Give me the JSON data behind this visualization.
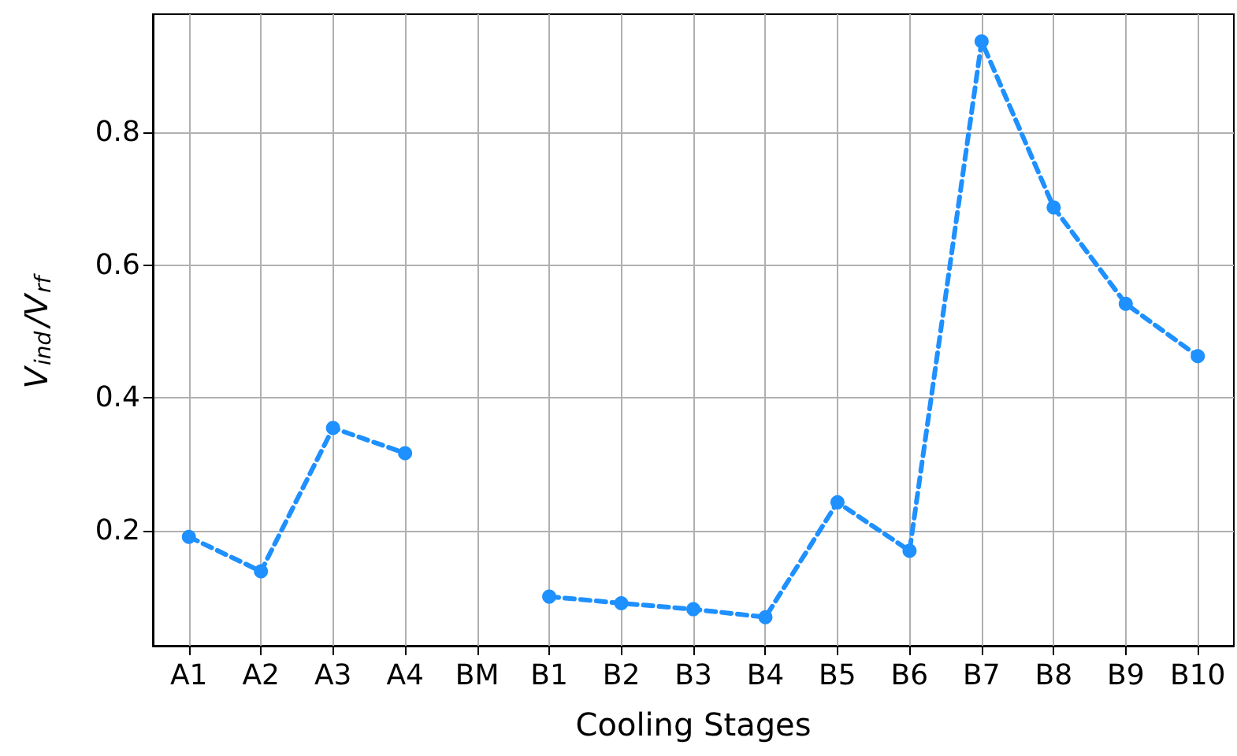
{
  "chart_data": {
    "type": "line",
    "xlabel": "Cooling Stages",
    "ylabel": "V$_{ind}$/V$_{rf}$",
    "categories": [
      "A1",
      "A2",
      "A3",
      "A4",
      "BM",
      "B1",
      "B2",
      "B3",
      "B4",
      "B5",
      "B6",
      "B7",
      "B8",
      "B9",
      "B10"
    ],
    "series": [
      {
        "color": "#1e90ff",
        "values": [
          0.191,
          0.139,
          0.355,
          0.317,
          null,
          0.101,
          0.091,
          0.082,
          0.07,
          0.243,
          0.17,
          0.937,
          0.687,
          0.542,
          0.463
        ]
      }
    ],
    "ylim": [
      0.027,
      0.978
    ],
    "yticks": [
      0.2,
      0.4,
      0.6,
      0.8
    ],
    "grid": true,
    "marker": "circle",
    "line_style": "dashed"
  }
}
